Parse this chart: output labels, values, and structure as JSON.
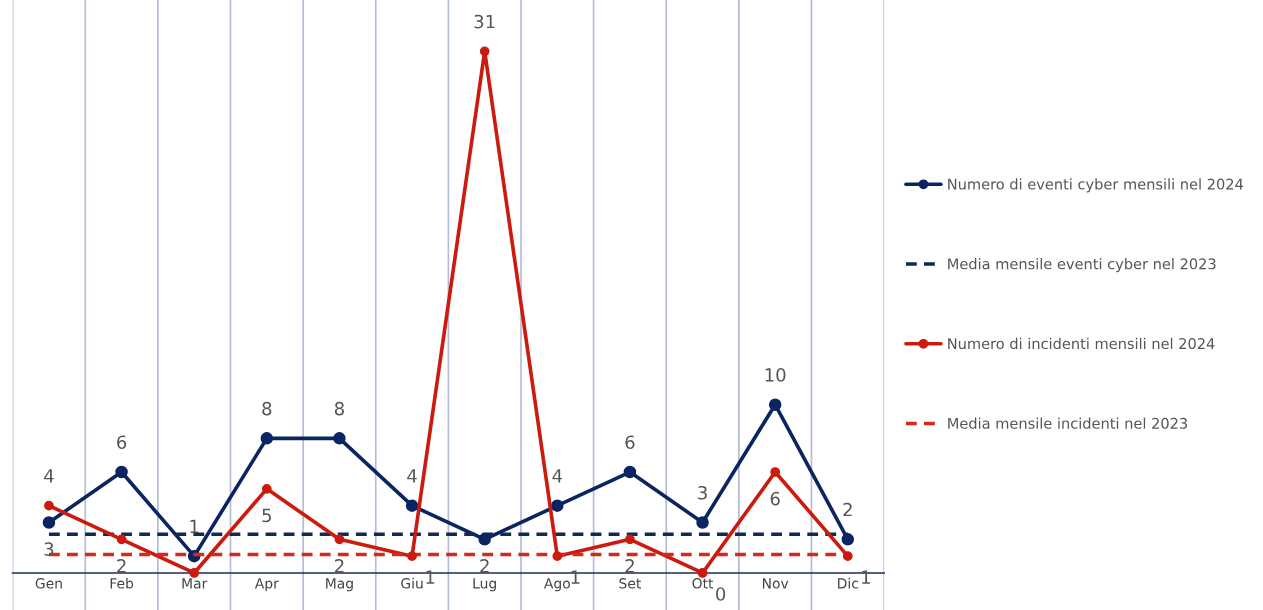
{
  "chart_data": {
    "type": "line",
    "categories": [
      "Gen",
      "Feb",
      "Mar",
      "Apr",
      "Mag",
      "Giu",
      "Lug",
      "Ago",
      "Set",
      "Ott",
      "Nov",
      "Dic"
    ],
    "series": [
      {
        "name": "Numero di eventi cyber mensili nel 2024",
        "color": "#0b2563",
        "marker": "circle",
        "line_style": "solid",
        "values": [
          3,
          6,
          1,
          8,
          8,
          4,
          2,
          4,
          6,
          3,
          10,
          2
        ],
        "value_labels": [
          "3",
          "6",
          "1",
          "8",
          "8",
          "4",
          "2",
          "4",
          "6",
          "3",
          "10",
          "2"
        ]
      },
      {
        "name": "Media mensile eventi cyber nel 2023",
        "color": "#0f2a55",
        "marker": "none",
        "line_style": "dashed",
        "values": [
          2.3,
          2.3,
          2.3,
          2.3,
          2.3,
          2.3,
          2.3,
          2.3,
          2.3,
          2.3,
          2.3,
          2.3
        ]
      },
      {
        "name": "Numero di incidenti mensili nel 2024",
        "color": "#cc1a0e",
        "marker": "circle",
        "line_style": "solid",
        "values": [
          4,
          2,
          0,
          5,
          2,
          1,
          31,
          1,
          2,
          0,
          6,
          1
        ],
        "value_labels": [
          "4",
          "2",
          null,
          "5",
          "2",
          "1",
          "31",
          "1",
          "2",
          "0",
          "6",
          "1"
        ]
      },
      {
        "name": "Media mensile incidenti nel 2023",
        "color": "#d42a1e",
        "marker": "none",
        "line_style": "dashed",
        "values": [
          1.1,
          1.1,
          1.1,
          1.1,
          1.1,
          1.1,
          1.1,
          1.1,
          1.1,
          1.1,
          1.1,
          1.1
        ]
      }
    ],
    "grid": "x",
    "legend": "right",
    "tick_labels": "x"
  }
}
